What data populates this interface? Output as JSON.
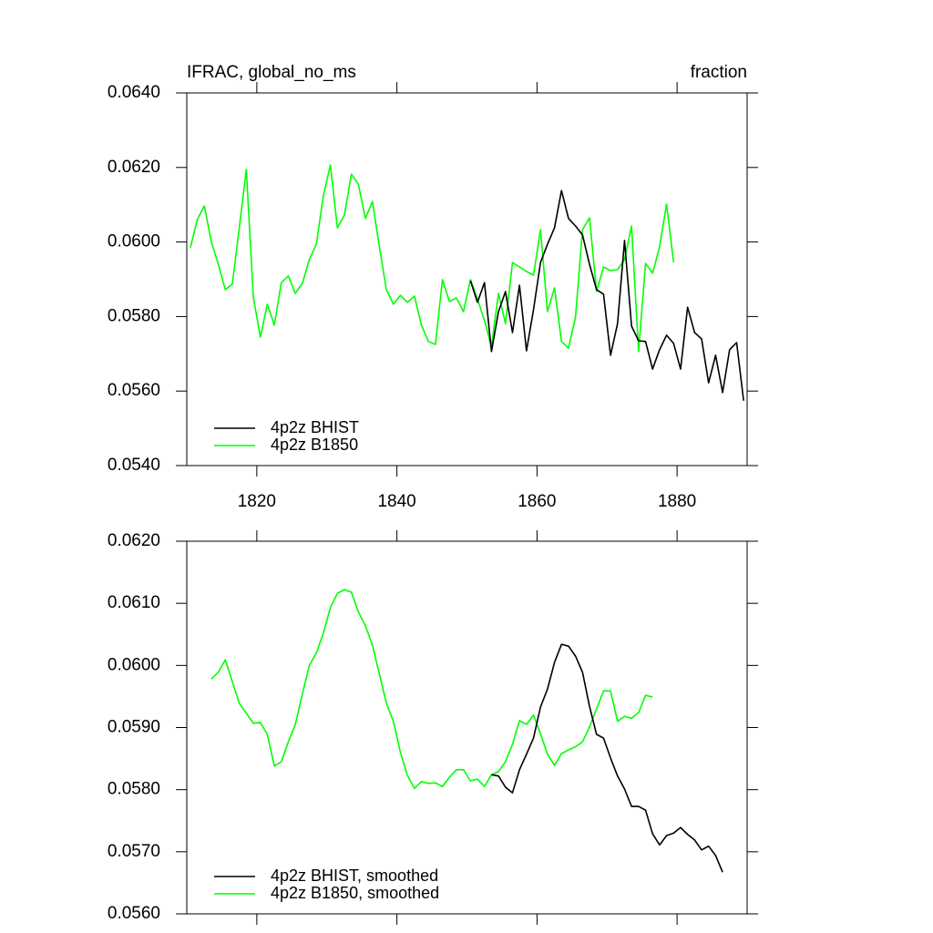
{
  "chart_data": [
    {
      "type": "line",
      "title": "IFRAC, global_no_ms",
      "right_title": "fraction",
      "x": [
        1810.5,
        1811.5,
        1812.5,
        1813.5,
        1814.5,
        1815.5,
        1816.5,
        1817.5,
        1818.5,
        1819.5,
        1820.5,
        1821.5,
        1822.5,
        1823.5,
        1824.5,
        1825.5,
        1826.5,
        1827.5,
        1828.5,
        1829.5,
        1830.5,
        1831.5,
        1832.5,
        1833.5,
        1834.5,
        1835.5,
        1836.5,
        1837.5,
        1838.5,
        1839.5,
        1840.5,
        1841.5,
        1842.5,
        1843.5,
        1844.5,
        1845.5,
        1846.5,
        1847.5,
        1848.5,
        1849.5,
        1850.5,
        1851.5,
        1852.5,
        1853.5,
        1854.5,
        1855.5,
        1856.5,
        1857.5,
        1858.5,
        1859.5,
        1860.5,
        1861.5,
        1862.5,
        1863.5,
        1864.5,
        1865.5,
        1866.5,
        1867.5,
        1868.5,
        1869.5,
        1870.5,
        1871.5,
        1872.5,
        1873.5,
        1874.5,
        1875.5,
        1876.5,
        1877.5,
        1878.5,
        1879.5,
        1880.5,
        1881.5,
        1882.5,
        1883.5,
        1884.5,
        1885.5,
        1886.5,
        1887.5,
        1888.5,
        1889.5
      ],
      "series": [
        {
          "name": "4p2z BHIST",
          "color": "#000000",
          "values": [
            null,
            null,
            null,
            null,
            null,
            null,
            null,
            null,
            null,
            null,
            null,
            null,
            null,
            null,
            null,
            null,
            null,
            null,
            null,
            null,
            null,
            null,
            null,
            null,
            null,
            null,
            null,
            null,
            null,
            null,
            null,
            null,
            null,
            null,
            null,
            null,
            null,
            null,
            null,
            null,
            0.05896,
            0.05838,
            0.05891,
            0.05706,
            0.05813,
            0.05867,
            0.05757,
            0.05884,
            0.05708,
            0.05818,
            0.05945,
            0.05994,
            0.06038,
            0.06138,
            0.06063,
            0.06043,
            0.06019,
            0.0594,
            0.05872,
            0.0586,
            0.05696,
            0.05781,
            0.06004,
            0.05774,
            0.05735,
            0.05733,
            0.05659,
            0.05711,
            0.0575,
            0.05728,
            0.05659,
            0.05825,
            0.05757,
            0.0574,
            0.05622,
            0.05696,
            0.05596,
            0.05711,
            0.0573,
            0.05574
          ]
        },
        {
          "name": "4p2z B1850",
          "color": "#00ff00",
          "values": [
            0.05984,
            0.0606,
            0.06097,
            0.06001,
            0.0594,
            0.05872,
            0.05887,
            0.06038,
            0.06195,
            0.05852,
            0.05745,
            0.05833,
            0.05777,
            0.05891,
            0.05909,
            0.05862,
            0.05889,
            0.05953,
            0.05994,
            0.06124,
            0.06207,
            0.06038,
            0.06072,
            0.06182,
            0.06155,
            0.06063,
            0.06109,
            0.05987,
            0.05872,
            0.05833,
            0.05857,
            0.05838,
            0.05855,
            0.05777,
            0.05733,
            0.05725,
            0.05899,
            0.0584,
            0.0585,
            0.05813,
            0.05899,
            0.05847,
            0.05789,
            0.0572,
            0.05862,
            0.05781,
            0.05945,
            0.05933,
            0.05921,
            0.05911,
            0.06033,
            0.05813,
            0.05877,
            0.05733,
            0.05715,
            0.05799,
            0.06033,
            0.06065,
            0.05867,
            0.05933,
            0.05923,
            0.05926,
            0.05953,
            0.06043,
            0.05706,
            0.05943,
            0.05916,
            0.05987,
            0.06102,
            0.05945,
            null,
            null,
            null,
            null,
            null,
            null,
            null,
            null,
            null,
            null
          ]
        }
      ],
      "xlim": [
        1810,
        1890
      ],
      "xticks": [
        1820,
        1840,
        1860,
        1880
      ],
      "ylim": [
        0.054,
        0.064
      ],
      "yticks": [
        {
          "value": 0.054,
          "label": "0.0540"
        },
        {
          "value": 0.056,
          "label": "0.0560"
        },
        {
          "value": 0.058,
          "label": "0.0580"
        },
        {
          "value": 0.06,
          "label": "0.0600"
        },
        {
          "value": 0.062,
          "label": "0.0620"
        },
        {
          "value": 0.064,
          "label": "0.0640"
        }
      ],
      "legend": "lower left"
    },
    {
      "type": "line",
      "x": [
        1810.5,
        1811.5,
        1812.5,
        1813.5,
        1814.5,
        1815.5,
        1816.5,
        1817.5,
        1818.5,
        1819.5,
        1820.5,
        1821.5,
        1822.5,
        1823.5,
        1824.5,
        1825.5,
        1826.5,
        1827.5,
        1828.5,
        1829.5,
        1830.5,
        1831.5,
        1832.5,
        1833.5,
        1834.5,
        1835.5,
        1836.5,
        1837.5,
        1838.5,
        1839.5,
        1840.5,
        1841.5,
        1842.5,
        1843.5,
        1844.5,
        1845.5,
        1846.5,
        1847.5,
        1848.5,
        1849.5,
        1850.5,
        1851.5,
        1852.5,
        1853.5,
        1854.5,
        1855.5,
        1856.5,
        1857.5,
        1858.5,
        1859.5,
        1860.5,
        1861.5,
        1862.5,
        1863.5,
        1864.5,
        1865.5,
        1866.5,
        1867.5,
        1868.5,
        1869.5,
        1870.5,
        1871.5,
        1872.5,
        1873.5,
        1874.5,
        1875.5,
        1876.5,
        1877.5,
        1878.5,
        1879.5,
        1880.5,
        1881.5,
        1882.5,
        1883.5,
        1884.5,
        1885.5,
        1886.5,
        1887.5,
        1888.5,
        1889.5
      ],
      "series": [
        {
          "name": "4p2z BHIST, smoothed",
          "color": "#000000",
          "values": [
            null,
            null,
            null,
            null,
            null,
            null,
            null,
            null,
            null,
            null,
            null,
            null,
            null,
            null,
            null,
            null,
            null,
            null,
            null,
            null,
            null,
            null,
            null,
            null,
            null,
            null,
            null,
            null,
            null,
            null,
            null,
            null,
            null,
            null,
            null,
            null,
            null,
            null,
            null,
            null,
            null,
            null,
            null,
            0.05824,
            0.05822,
            0.05804,
            0.05795,
            0.05832,
            0.05857,
            0.05883,
            0.05933,
            0.05962,
            0.06005,
            0.06034,
            0.06031,
            0.06015,
            0.05989,
            0.05934,
            0.05889,
            0.05883,
            0.05851,
            0.05822,
            0.05801,
            0.05773,
            0.05773,
            0.05767,
            0.05729,
            0.05711,
            0.05726,
            0.0573,
            0.05739,
            0.05728,
            0.05719,
            0.05703,
            0.05709,
            0.05694,
            0.05667,
            null,
            null,
            null
          ]
        },
        {
          "name": "4p2z B1850, smoothed",
          "color": "#00ff00",
          "values": [
            null,
            null,
            null,
            0.05978,
            0.05989,
            0.06009,
            0.05974,
            0.05939,
            0.05923,
            0.05907,
            0.05908,
            0.05889,
            0.05838,
            0.05845,
            0.05877,
            0.05905,
            0.05954,
            0.06,
            0.0602,
            0.06052,
            0.06093,
            0.06116,
            0.06122,
            0.06118,
            0.06086,
            0.06064,
            0.06033,
            0.05986,
            0.05939,
            0.0591,
            0.0586,
            0.05823,
            0.05802,
            0.05813,
            0.0581,
            0.05811,
            0.05805,
            0.0582,
            0.05832,
            0.05832,
            0.05814,
            0.05817,
            0.05805,
            0.05824,
            0.05829,
            0.05845,
            0.05873,
            0.05911,
            0.05905,
            0.0592,
            0.0589,
            0.05857,
            0.05839,
            0.05858,
            0.05864,
            0.05869,
            0.05877,
            0.05901,
            0.0593,
            0.05959,
            0.05959,
            0.0591,
            0.05918,
            0.05915,
            0.05924,
            0.05952,
            0.05949,
            null,
            null,
            null,
            null,
            null,
            null,
            null,
            null,
            null,
            null,
            null,
            null,
            null
          ]
        }
      ],
      "xlim": [
        1810,
        1890
      ],
      "ylim": [
        0.056,
        0.062
      ],
      "yticks": [
        {
          "value": 0.056,
          "label": "0.0560"
        },
        {
          "value": 0.057,
          "label": "0.0570"
        },
        {
          "value": 0.058,
          "label": "0.0580"
        },
        {
          "value": 0.059,
          "label": "0.0590"
        },
        {
          "value": 0.06,
          "label": "0.0600"
        },
        {
          "value": 0.061,
          "label": "0.0610"
        },
        {
          "value": 0.062,
          "label": "0.0620"
        }
      ],
      "legend": "lower left"
    }
  ]
}
